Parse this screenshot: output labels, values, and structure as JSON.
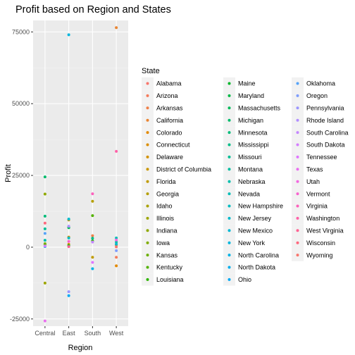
{
  "chart_data": {
    "type": "scatter",
    "title": "Profit based on Region and States",
    "xlabel": "Region",
    "ylabel": "Profit",
    "x_categories": [
      "Central",
      "East",
      "South",
      "West"
    ],
    "yticks": [
      -25000,
      0,
      25000,
      50000,
      75000
    ],
    "ytick_labels": [
      "-25000",
      "0",
      "25000",
      "50000",
      "75000"
    ],
    "ylim": [
      -27500,
      79000
    ],
    "grid": true,
    "legend_title": "State",
    "legend_position": "right",
    "series": [
      {
        "name": "Alabama",
        "color": "#F8766D",
        "points": []
      },
      {
        "name": "Arizona",
        "color": "#F47B5B",
        "points": [
          [
            "West",
            -3500
          ]
        ]
      },
      {
        "name": "Arkansas",
        "color": "#EF7F48",
        "points": [
          [
            "South",
            4000
          ]
        ]
      },
      {
        "name": "California",
        "color": "#E98431",
        "points": [
          [
            "West",
            76500
          ]
        ]
      },
      {
        "name": "Colorado",
        "color": "#E38900",
        "points": [
          [
            "West",
            -6500
          ]
        ]
      },
      {
        "name": "Connecticut",
        "color": "#DB8E00",
        "points": [
          [
            "East",
            3500
          ]
        ]
      },
      {
        "name": "Delaware",
        "color": "#D39200",
        "points": [
          [
            "East",
            9500
          ]
        ]
      },
      {
        "name": "District of Columbia",
        "color": "#CA9700",
        "points": [
          [
            "East",
            1000
          ]
        ]
      },
      {
        "name": "Florida",
        "color": "#C09B00",
        "points": [
          [
            "South",
            -3500
          ]
        ]
      },
      {
        "name": "Georgia",
        "color": "#B59F00",
        "points": [
          [
            "South",
            16000
          ]
        ]
      },
      {
        "name": "Idaho",
        "color": "#AAA200",
        "points": [
          [
            "West",
            800
          ]
        ]
      },
      {
        "name": "Illinois",
        "color": "#9DA600",
        "points": [
          [
            "Central",
            -12500
          ]
        ]
      },
      {
        "name": "Indiana",
        "color": "#8FA900",
        "points": [
          [
            "Central",
            18500
          ]
        ]
      },
      {
        "name": "Iowa",
        "color": "#7FAC00",
        "points": [
          [
            "Central",
            1200
          ]
        ]
      },
      {
        "name": "Kansas",
        "color": "#6CAF00",
        "points": [
          [
            "Central",
            900
          ]
        ]
      },
      {
        "name": "Kentucky",
        "color": "#53B200",
        "points": [
          [
            "South",
            11000
          ]
        ]
      },
      {
        "name": "Louisiana",
        "color": "#2DB400",
        "points": [
          [
            "South",
            2200
          ]
        ]
      },
      {
        "name": "Maine",
        "color": "#00B62B",
        "points": [
          [
            "East",
            500
          ]
        ]
      },
      {
        "name": "Maryland",
        "color": "#00B846",
        "points": [
          [
            "East",
            7000
          ]
        ]
      },
      {
        "name": "Massachusetts",
        "color": "#00BA5A",
        "points": [
          [
            "East",
            6800
          ]
        ]
      },
      {
        "name": "Michigan",
        "color": "#00BB6B",
        "points": [
          [
            "Central",
            24500
          ]
        ]
      },
      {
        "name": "Minnesota",
        "color": "#00BC7A",
        "points": [
          [
            "Central",
            10800
          ]
        ]
      },
      {
        "name": "Mississippi",
        "color": "#00BD88",
        "points": [
          [
            "South",
            3100
          ]
        ]
      },
      {
        "name": "Missouri",
        "color": "#00BE95",
        "points": [
          [
            "Central",
            6400
          ]
        ]
      },
      {
        "name": "Montana",
        "color": "#00BEA1",
        "points": [
          [
            "West",
            1800
          ]
        ]
      },
      {
        "name": "Nebraska",
        "color": "#00BEAC",
        "points": [
          [
            "Central",
            2400
          ]
        ]
      },
      {
        "name": "Nevada",
        "color": "#00BDB7",
        "points": [
          [
            "West",
            3200
          ]
        ]
      },
      {
        "name": "New Hampshire",
        "color": "#00BCC1",
        "points": [
          [
            "East",
            3200
          ]
        ]
      },
      {
        "name": "New Jersey",
        "color": "#00BACB",
        "points": [
          [
            "East",
            9800
          ]
        ]
      },
      {
        "name": "New Mexico",
        "color": "#00B8D4",
        "points": [
          [
            "West",
            1100
          ]
        ]
      },
      {
        "name": "New York",
        "color": "#00B5DD",
        "points": [
          [
            "East",
            74000
          ]
        ]
      },
      {
        "name": "North Carolina",
        "color": "#00B2E5",
        "points": [
          [
            "South",
            -7500
          ]
        ]
      },
      {
        "name": "North Dakota",
        "color": "#00AEEC",
        "points": [
          [
            "Central",
            230
          ]
        ]
      },
      {
        "name": "Ohio",
        "color": "#00A9F3",
        "points": [
          [
            "East",
            -16900
          ]
        ]
      },
      {
        "name": "Oklahoma",
        "color": "#56A3F8",
        "points": [
          [
            "Central",
            4800
          ]
        ]
      },
      {
        "name": "Oregon",
        "color": "#7F9DFC",
        "points": [
          [
            "West",
            -1200
          ]
        ]
      },
      {
        "name": "Pennsylvania",
        "color": "#9C96FF",
        "points": [
          [
            "East",
            -15500
          ]
        ]
      },
      {
        "name": "Rhode Island",
        "color": "#B28FFF",
        "points": [
          [
            "East",
            7300
          ]
        ]
      },
      {
        "name": "South Carolina",
        "color": "#C487FF",
        "points": [
          [
            "South",
            1800
          ]
        ]
      },
      {
        "name": "South Dakota",
        "color": "#D47EFF",
        "points": [
          [
            "Central",
            400
          ]
        ]
      },
      {
        "name": "Tennessee",
        "color": "#E076FF",
        "points": [
          [
            "South",
            -5300
          ]
        ]
      },
      {
        "name": "Texas",
        "color": "#EA6EEF",
        "points": [
          [
            "Central",
            -25700
          ]
        ]
      },
      {
        "name": "Utah",
        "color": "#F267E0",
        "points": [
          [
            "West",
            2500
          ]
        ]
      },
      {
        "name": "Vermont",
        "color": "#F863CF",
        "points": [
          [
            "East",
            2000
          ]
        ]
      },
      {
        "name": "Virginia",
        "color": "#FC61BC",
        "points": [
          [
            "South",
            18600
          ]
        ]
      },
      {
        "name": "Washington",
        "color": "#FF61A8",
        "points": [
          [
            "West",
            33400
          ]
        ]
      },
      {
        "name": "West Virginia",
        "color": "#FF6393",
        "points": [
          [
            "East",
            200
          ]
        ]
      },
      {
        "name": "Wisconsin",
        "color": "#FF677D",
        "points": [
          [
            "Central",
            8400
          ]
        ]
      },
      {
        "name": "Wyoming",
        "color": "#F8766D",
        "points": [
          [
            "West",
            100
          ]
        ]
      }
    ]
  }
}
